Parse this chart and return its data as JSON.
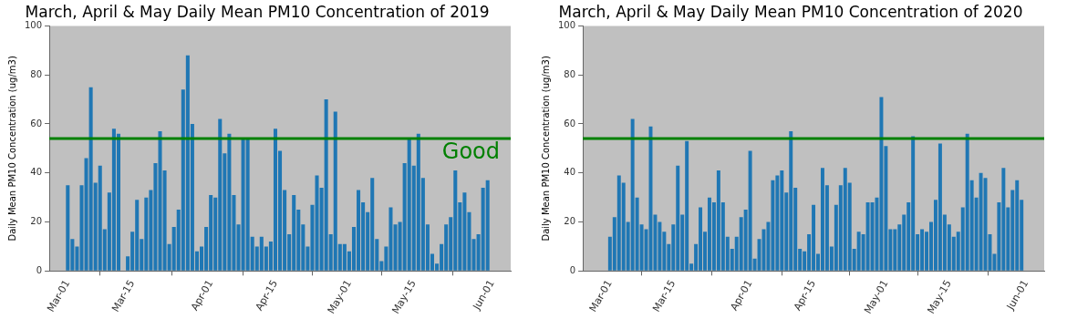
{
  "chart_data": [
    {
      "type": "bar",
      "title": "March, April & May Daily Mean PM10 Concentration of 2019",
      "ylabel": "Daily Mean PM10 Concentration (ug/m3)",
      "x": [
        "2019-03-01",
        "2019-03-02",
        "2019-03-03",
        "2019-03-04",
        "2019-03-05",
        "2019-03-06",
        "2019-03-07",
        "2019-03-08",
        "2019-03-09",
        "2019-03-10",
        "2019-03-11",
        "2019-03-12",
        "2019-03-13",
        "2019-03-14",
        "2019-03-15",
        "2019-03-16",
        "2019-03-17",
        "2019-03-18",
        "2019-03-19",
        "2019-03-20",
        "2019-03-21",
        "2019-03-22",
        "2019-03-23",
        "2019-03-24",
        "2019-03-25",
        "2019-03-26",
        "2019-03-27",
        "2019-03-28",
        "2019-03-29",
        "2019-03-30",
        "2019-03-31",
        "2019-04-01",
        "2019-04-02",
        "2019-04-03",
        "2019-04-04",
        "2019-04-05",
        "2019-04-06",
        "2019-04-07",
        "2019-04-08",
        "2019-04-09",
        "2019-04-10",
        "2019-04-11",
        "2019-04-12",
        "2019-04-13",
        "2019-04-14",
        "2019-04-15",
        "2019-04-16",
        "2019-04-17",
        "2019-04-18",
        "2019-04-19",
        "2019-04-20",
        "2019-04-21",
        "2019-04-22",
        "2019-04-23",
        "2019-04-24",
        "2019-04-25",
        "2019-04-26",
        "2019-04-27",
        "2019-04-28",
        "2019-04-29",
        "2019-04-30",
        "2019-05-01",
        "2019-05-02",
        "2019-05-03",
        "2019-05-04",
        "2019-05-05",
        "2019-05-06",
        "2019-05-07",
        "2019-05-08",
        "2019-05-09",
        "2019-05-10",
        "2019-05-11",
        "2019-05-12",
        "2019-05-13",
        "2019-05-14",
        "2019-05-15",
        "2019-05-16",
        "2019-05-17",
        "2019-05-18",
        "2019-05-19",
        "2019-05-20",
        "2019-05-21",
        "2019-05-22",
        "2019-05-23",
        "2019-05-24",
        "2019-05-25",
        "2019-05-26",
        "2019-05-27",
        "2019-05-28",
        "2019-05-29",
        "2019-05-30",
        "2019-05-31"
      ],
      "values": [
        35,
        13,
        10,
        35,
        46,
        75,
        36,
        43,
        17,
        32,
        58,
        56,
        0,
        6,
        16,
        29,
        13,
        30,
        33,
        44,
        57,
        41,
        11,
        18,
        25,
        74,
        88,
        60,
        8,
        10,
        18,
        31,
        30,
        62,
        48,
        56,
        31,
        19,
        54,
        54,
        14,
        10,
        14,
        10,
        12,
        58,
        49,
        33,
        15,
        31,
        25,
        19,
        10,
        27,
        39,
        34,
        70,
        15,
        65,
        11,
        11,
        8,
        18,
        33,
        28,
        24,
        38,
        13,
        4,
        10,
        26,
        19,
        20,
        44,
        54,
        43,
        56,
        38,
        19,
        7,
        3,
        11,
        19,
        22,
        41,
        28,
        32,
        24,
        13,
        15,
        34,
        37
      ],
      "color": "#1f77b4",
      "xlim": [
        "2019-02-25",
        "2019-06-05"
      ],
      "xticks": [
        {
          "value": "2019-03-01",
          "label": "Mar-01"
        },
        {
          "value": "2019-03-15",
          "label": "Mar-15"
        },
        {
          "value": "2019-04-01",
          "label": "Apr-01"
        },
        {
          "value": "2019-04-15",
          "label": "Apr-15"
        },
        {
          "value": "2019-05-01",
          "label": "May-01"
        },
        {
          "value": "2019-05-15",
          "label": "May-15"
        },
        {
          "value": "2019-06-01",
          "label": "Jun-01"
        }
      ],
      "ylim": [
        0,
        100
      ],
      "yticks": [
        0,
        20,
        40,
        60,
        80,
        100
      ],
      "ref_lines": [
        {
          "axis": "y",
          "value": 54,
          "label": "Good",
          "color": "#008000"
        }
      ],
      "grid": false,
      "legend": false
    },
    {
      "type": "bar",
      "title": "March, April & May Daily Mean PM10 Concentration of 2020",
      "ylabel": "Daily Mean PM10 Concentration (ug/m3)",
      "x": [
        "2020-03-01",
        "2020-03-02",
        "2020-03-03",
        "2020-03-04",
        "2020-03-05",
        "2020-03-06",
        "2020-03-07",
        "2020-03-08",
        "2020-03-09",
        "2020-03-10",
        "2020-03-11",
        "2020-03-12",
        "2020-03-13",
        "2020-03-14",
        "2020-03-15",
        "2020-03-16",
        "2020-03-17",
        "2020-03-18",
        "2020-03-19",
        "2020-03-20",
        "2020-03-21",
        "2020-03-22",
        "2020-03-23",
        "2020-03-24",
        "2020-03-25",
        "2020-03-26",
        "2020-03-27",
        "2020-03-28",
        "2020-03-29",
        "2020-03-30",
        "2020-03-31",
        "2020-04-01",
        "2020-04-02",
        "2020-04-03",
        "2020-04-04",
        "2020-04-05",
        "2020-04-06",
        "2020-04-07",
        "2020-04-08",
        "2020-04-09",
        "2020-04-10",
        "2020-04-11",
        "2020-04-12",
        "2020-04-13",
        "2020-04-14",
        "2020-04-15",
        "2020-04-16",
        "2020-04-17",
        "2020-04-18",
        "2020-04-19",
        "2020-04-20",
        "2020-04-21",
        "2020-04-22",
        "2020-04-23",
        "2020-04-24",
        "2020-04-25",
        "2020-04-26",
        "2020-04-27",
        "2020-04-28",
        "2020-04-29",
        "2020-04-30",
        "2020-05-01",
        "2020-05-02",
        "2020-05-03",
        "2020-05-04",
        "2020-05-05",
        "2020-05-06",
        "2020-05-07",
        "2020-05-08",
        "2020-05-09",
        "2020-05-10",
        "2020-05-11",
        "2020-05-12",
        "2020-05-13",
        "2020-05-14",
        "2020-05-15",
        "2020-05-16",
        "2020-05-17",
        "2020-05-18",
        "2020-05-19",
        "2020-05-20",
        "2020-05-21",
        "2020-05-22",
        "2020-05-23",
        "2020-05-24",
        "2020-05-25",
        "2020-05-26",
        "2020-05-27",
        "2020-05-28",
        "2020-05-29",
        "2020-05-30",
        "2020-05-31"
      ],
      "values": [
        14,
        22,
        39,
        36,
        20,
        62,
        30,
        19,
        17,
        59,
        23,
        20,
        16,
        11,
        19,
        43,
        23,
        53,
        3,
        11,
        26,
        16,
        30,
        28,
        41,
        28,
        14,
        9,
        14,
        22,
        25,
        49,
        5,
        13,
        17,
        20,
        37,
        39,
        41,
        32,
        57,
        34,
        9,
        8,
        15,
        27,
        7,
        42,
        35,
        10,
        27,
        35,
        42,
        36,
        9,
        16,
        15,
        28,
        28,
        30,
        71,
        51,
        17,
        17,
        19,
        23,
        28,
        55,
        15,
        17,
        16,
        20,
        29,
        52,
        23,
        19,
        14,
        16,
        26,
        56,
        37,
        30,
        40,
        38,
        15,
        7,
        28,
        42,
        26,
        33,
        37,
        29
      ],
      "color": "#1f77b4",
      "xlim": [
        "2020-02-24",
        "2020-06-05"
      ],
      "xticks": [
        {
          "value": "2020-03-01",
          "label": "Mar-01"
        },
        {
          "value": "2020-03-15",
          "label": "Mar-15"
        },
        {
          "value": "2020-04-01",
          "label": "Apr-01"
        },
        {
          "value": "2020-04-15",
          "label": "Apr-15"
        },
        {
          "value": "2020-05-01",
          "label": "May-01"
        },
        {
          "value": "2020-05-15",
          "label": "May-15"
        },
        {
          "value": "2020-06-01",
          "label": "Jun-01"
        }
      ],
      "ylim": [
        0,
        100
      ],
      "yticks": [
        0,
        20,
        40,
        60,
        80,
        100
      ],
      "ref_lines": [
        {
          "axis": "y",
          "value": 54,
          "color": "#008000"
        }
      ],
      "grid": false,
      "legend": false
    }
  ]
}
